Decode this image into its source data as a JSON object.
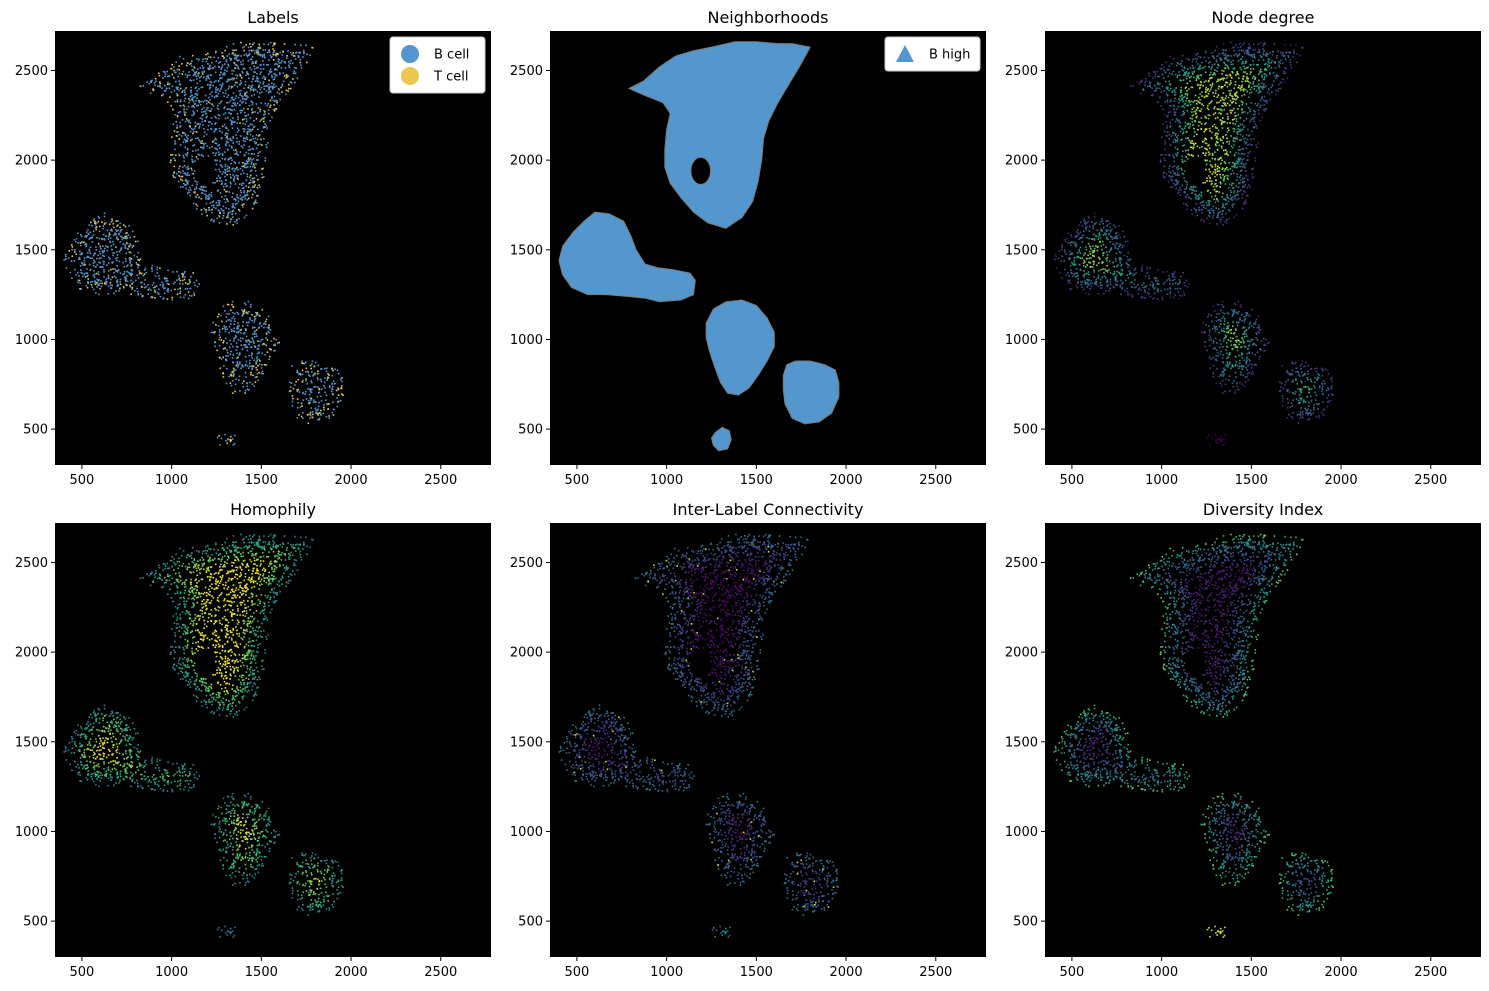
{
  "colors": {
    "background": "#000000",
    "b_cell": "#5497cf",
    "t_cell": "#e8c84e",
    "neighborhood_fill": "#5497cf",
    "neighborhood_edge": "#7a7a7a"
  },
  "chart_data": [
    {
      "type": "scatter",
      "title": "Labels",
      "xlim": [
        350,
        2780
      ],
      "ylim": [
        300,
        2720
      ],
      "xticks": [
        "500",
        "1000",
        "1500",
        "2000",
        "2500"
      ],
      "yticks": [
        "500",
        "1000",
        "1500",
        "2000",
        "2500"
      ],
      "grid": false,
      "legend": {
        "placement": "top-right",
        "entries": [
          {
            "label": "B cell",
            "marker": "circle",
            "color": "#5497cf"
          },
          {
            "label": "T cell",
            "marker": "circle",
            "color": "#e8c84e"
          }
        ]
      },
      "series": [
        {
          "name": "B cell",
          "color": "#5497cf"
        },
        {
          "name": "T cell",
          "color": "#e8c84e"
        }
      ],
      "encoding": "categorical"
    },
    {
      "type": "area",
      "title": "Neighborhoods",
      "xlim": [
        350,
        2780
      ],
      "ylim": [
        300,
        2720
      ],
      "xticks": [
        "500",
        "1000",
        "1500",
        "2000",
        "2500"
      ],
      "yticks": [
        "500",
        "1000",
        "1500",
        "2000",
        "2500"
      ],
      "grid": false,
      "legend": {
        "placement": "top-right",
        "entries": [
          {
            "label": "B high",
            "marker": "triangle",
            "color": "#5497cf"
          }
        ]
      },
      "regions": [
        {
          "name": "B high",
          "color": "#5497cf"
        }
      ],
      "encoding": "regions"
    },
    {
      "type": "scatter",
      "title": "Node degree",
      "xlim": [
        350,
        2780
      ],
      "ylim": [
        300,
        2720
      ],
      "xticks": [
        "500",
        "1000",
        "1500",
        "2000",
        "2500"
      ],
      "yticks": [
        "500",
        "1000",
        "1500",
        "2000",
        "2500"
      ],
      "grid": false,
      "colormap": "viridis",
      "encoding": "degree"
    },
    {
      "type": "scatter",
      "title": "Homophily",
      "xlim": [
        350,
        2780
      ],
      "ylim": [
        300,
        2720
      ],
      "xticks": [
        "500",
        "1000",
        "1500",
        "2000",
        "2500"
      ],
      "yticks": [
        "500",
        "1000",
        "1500",
        "2000",
        "2500"
      ],
      "grid": false,
      "colormap": "viridis",
      "encoding": "homophily"
    },
    {
      "type": "scatter",
      "title": "Inter-Label Connectivity",
      "xlim": [
        350,
        2780
      ],
      "ylim": [
        300,
        2720
      ],
      "xticks": [
        "500",
        "1000",
        "1500",
        "2000",
        "2500"
      ],
      "yticks": [
        "500",
        "1000",
        "1500",
        "2000",
        "2500"
      ],
      "grid": false,
      "colormap": "viridis",
      "encoding": "connectivity"
    },
    {
      "type": "scatter",
      "title": "Diversity Index",
      "xlim": [
        350,
        2780
      ],
      "ylim": [
        300,
        2720
      ],
      "xticks": [
        "500",
        "1000",
        "1500",
        "2000",
        "2500"
      ],
      "yticks": [
        "500",
        "1000",
        "1500",
        "2000",
        "2500"
      ],
      "grid": false,
      "colormap": "viridis",
      "encoding": "diversity"
    }
  ]
}
